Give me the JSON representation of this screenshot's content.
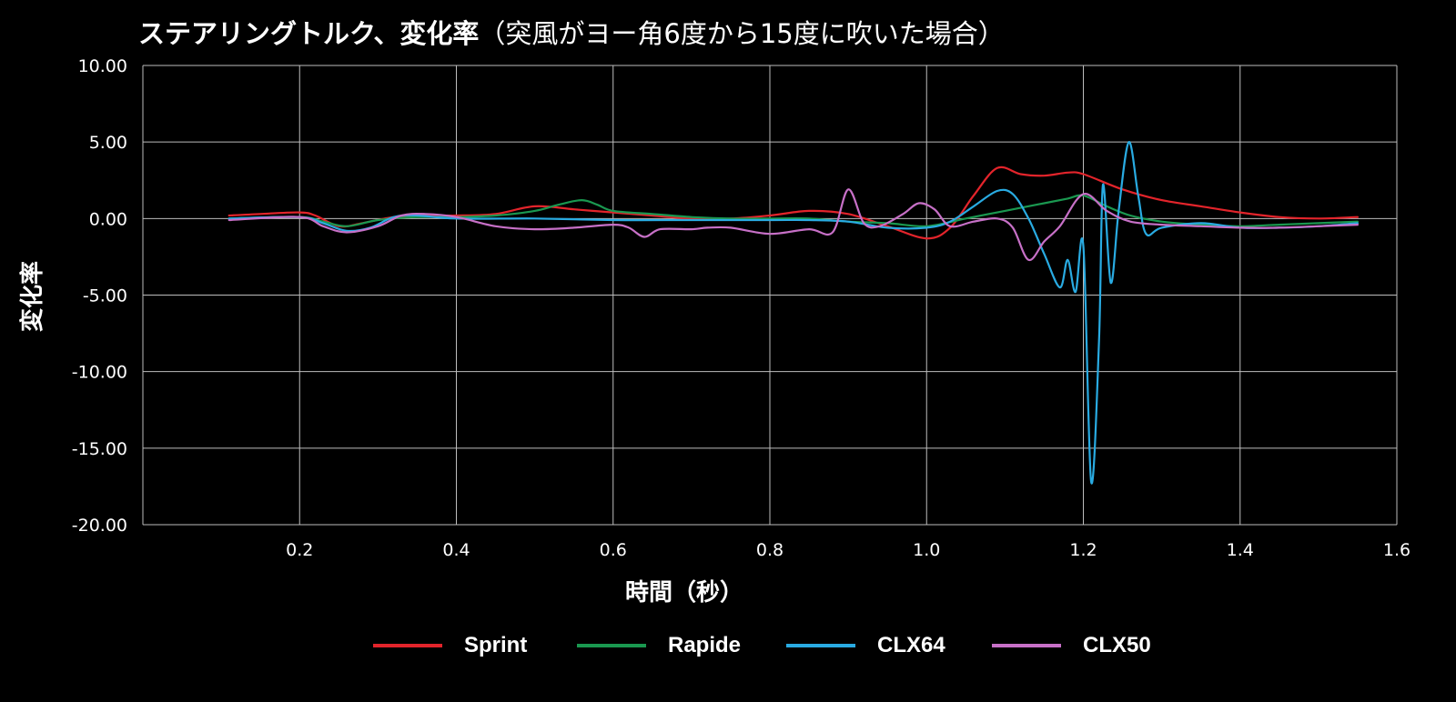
{
  "title": {
    "main": "ステアリングトルク、変化率",
    "sub": "（突風がヨー角6度から15度に吹いた場合）"
  },
  "colors": {
    "background": "#000000",
    "grid": "#bdbdbd",
    "text": "#ffffff"
  },
  "chart_data": {
    "type": "line",
    "title": "ステアリングトルク、変化率（突風がヨー角6度から15度に吹いた場合）",
    "xlabel": "時間（秒）",
    "ylabel": "変化率",
    "xlim": [
      0,
      1.6
    ],
    "ylim": [
      -20,
      10
    ],
    "x_ticks": [
      "0.2",
      "0.4",
      "0.6",
      "0.8",
      "1.0",
      "1.2",
      "1.4",
      "1.6"
    ],
    "y_ticks": [
      "10.00",
      "5.00",
      "0.00",
      "-5.00",
      "-10.00",
      "-15.00",
      "-20.00"
    ],
    "grid": true,
    "legend_position": "bottom",
    "series": [
      {
        "name": "Sprint",
        "color": "#e3242b",
        "points": [
          [
            0.11,
            0.2
          ],
          [
            0.15,
            0.3
          ],
          [
            0.2,
            0.4
          ],
          [
            0.22,
            0.2
          ],
          [
            0.25,
            -0.5
          ],
          [
            0.28,
            -0.3
          ],
          [
            0.32,
            0.1
          ],
          [
            0.36,
            0.2
          ],
          [
            0.4,
            0.2
          ],
          [
            0.45,
            0.3
          ],
          [
            0.5,
            0.8
          ],
          [
            0.55,
            0.6
          ],
          [
            0.6,
            0.4
          ],
          [
            0.65,
            0.2
          ],
          [
            0.7,
            0.0
          ],
          [
            0.75,
            0.0
          ],
          [
            0.8,
            0.2
          ],
          [
            0.85,
            0.5
          ],
          [
            0.9,
            0.3
          ],
          [
            0.95,
            -0.5
          ],
          [
            1.0,
            -1.3
          ],
          [
            1.03,
            -0.6
          ],
          [
            1.06,
            1.5
          ],
          [
            1.09,
            3.3
          ],
          [
            1.12,
            2.9
          ],
          [
            1.15,
            2.8
          ],
          [
            1.18,
            3.0
          ],
          [
            1.2,
            2.9
          ],
          [
            1.25,
            1.9
          ],
          [
            1.3,
            1.2
          ],
          [
            1.35,
            0.8
          ],
          [
            1.4,
            0.4
          ],
          [
            1.45,
            0.1
          ],
          [
            1.5,
            0.0
          ],
          [
            1.55,
            0.1
          ]
        ]
      },
      {
        "name": "Rapide",
        "color": "#1a9850",
        "points": [
          [
            0.11,
            0.0
          ],
          [
            0.2,
            0.1
          ],
          [
            0.23,
            -0.2
          ],
          [
            0.26,
            -0.5
          ],
          [
            0.3,
            -0.1
          ],
          [
            0.35,
            0.1
          ],
          [
            0.4,
            0.1
          ],
          [
            0.45,
            0.2
          ],
          [
            0.5,
            0.5
          ],
          [
            0.53,
            0.9
          ],
          [
            0.56,
            1.2
          ],
          [
            0.58,
            0.9
          ],
          [
            0.6,
            0.5
          ],
          [
            0.65,
            0.3
          ],
          [
            0.7,
            0.1
          ],
          [
            0.75,
            0.0
          ],
          [
            0.8,
            0.0
          ],
          [
            0.85,
            0.0
          ],
          [
            0.9,
            -0.2
          ],
          [
            0.95,
            -0.3
          ],
          [
            1.0,
            -0.5
          ],
          [
            1.05,
            0.0
          ],
          [
            1.1,
            0.5
          ],
          [
            1.15,
            1.0
          ],
          [
            1.18,
            1.3
          ],
          [
            1.2,
            1.5
          ],
          [
            1.23,
            0.8
          ],
          [
            1.26,
            0.2
          ],
          [
            1.3,
            -0.2
          ],
          [
            1.35,
            -0.4
          ],
          [
            1.4,
            -0.5
          ],
          [
            1.45,
            -0.4
          ],
          [
            1.5,
            -0.3
          ],
          [
            1.55,
            -0.2
          ]
        ]
      },
      {
        "name": "CLX64",
        "color": "#29abe2",
        "points": [
          [
            0.11,
            0.0
          ],
          [
            0.2,
            0.1
          ],
          [
            0.23,
            -0.3
          ],
          [
            0.26,
            -0.8
          ],
          [
            0.29,
            -0.6
          ],
          [
            0.32,
            0.1
          ],
          [
            0.35,
            0.2
          ],
          [
            0.4,
            0.0
          ],
          [
            0.5,
            0.0
          ],
          [
            0.6,
            -0.1
          ],
          [
            0.7,
            -0.1
          ],
          [
            0.8,
            -0.1
          ],
          [
            0.85,
            -0.1
          ],
          [
            0.9,
            -0.2
          ],
          [
            0.95,
            -0.6
          ],
          [
            1.0,
            -0.6
          ],
          [
            1.03,
            -0.2
          ],
          [
            1.06,
            0.8
          ],
          [
            1.09,
            1.8
          ],
          [
            1.11,
            1.6
          ],
          [
            1.13,
            0.0
          ],
          [
            1.15,
            -2.3
          ],
          [
            1.17,
            -4.5
          ],
          [
            1.18,
            -2.7
          ],
          [
            1.19,
            -4.8
          ],
          [
            1.2,
            -1.8
          ],
          [
            1.21,
            -17.2
          ],
          [
            1.22,
            -8.0
          ],
          [
            1.225,
            2.2
          ],
          [
            1.235,
            -4.2
          ],
          [
            1.245,
            0.5
          ],
          [
            1.258,
            5.0
          ],
          [
            1.27,
            1.5
          ],
          [
            1.28,
            -1.0
          ],
          [
            1.3,
            -0.6
          ],
          [
            1.35,
            -0.3
          ],
          [
            1.4,
            -0.6
          ],
          [
            1.45,
            -0.6
          ],
          [
            1.5,
            -0.5
          ],
          [
            1.55,
            -0.3
          ]
        ]
      },
      {
        "name": "CLX50",
        "color": "#c770c7",
        "points": [
          [
            0.11,
            -0.1
          ],
          [
            0.2,
            0.1
          ],
          [
            0.23,
            -0.5
          ],
          [
            0.26,
            -0.9
          ],
          [
            0.3,
            -0.5
          ],
          [
            0.33,
            0.2
          ],
          [
            0.36,
            0.3
          ],
          [
            0.4,
            0.1
          ],
          [
            0.45,
            -0.5
          ],
          [
            0.5,
            -0.7
          ],
          [
            0.55,
            -0.6
          ],
          [
            0.6,
            -0.4
          ],
          [
            0.62,
            -0.6
          ],
          [
            0.64,
            -1.2
          ],
          [
            0.66,
            -0.7
          ],
          [
            0.7,
            -0.7
          ],
          [
            0.72,
            -0.6
          ],
          [
            0.75,
            -0.6
          ],
          [
            0.8,
            -1.0
          ],
          [
            0.85,
            -0.7
          ],
          [
            0.88,
            -0.9
          ],
          [
            0.9,
            1.9
          ],
          [
            0.92,
            -0.3
          ],
          [
            0.94,
            -0.5
          ],
          [
            0.97,
            0.3
          ],
          [
            0.99,
            1.0
          ],
          [
            1.01,
            0.6
          ],
          [
            1.03,
            -0.5
          ],
          [
            1.06,
            -0.2
          ],
          [
            1.09,
            0.0
          ],
          [
            1.11,
            -0.6
          ],
          [
            1.13,
            -2.7
          ],
          [
            1.15,
            -1.5
          ],
          [
            1.17,
            -0.5
          ],
          [
            1.2,
            1.6
          ],
          [
            1.23,
            0.5
          ],
          [
            1.26,
            -0.2
          ],
          [
            1.3,
            -0.4
          ],
          [
            1.35,
            -0.5
          ],
          [
            1.4,
            -0.6
          ],
          [
            1.45,
            -0.6
          ],
          [
            1.5,
            -0.5
          ],
          [
            1.55,
            -0.4
          ]
        ]
      }
    ]
  }
}
